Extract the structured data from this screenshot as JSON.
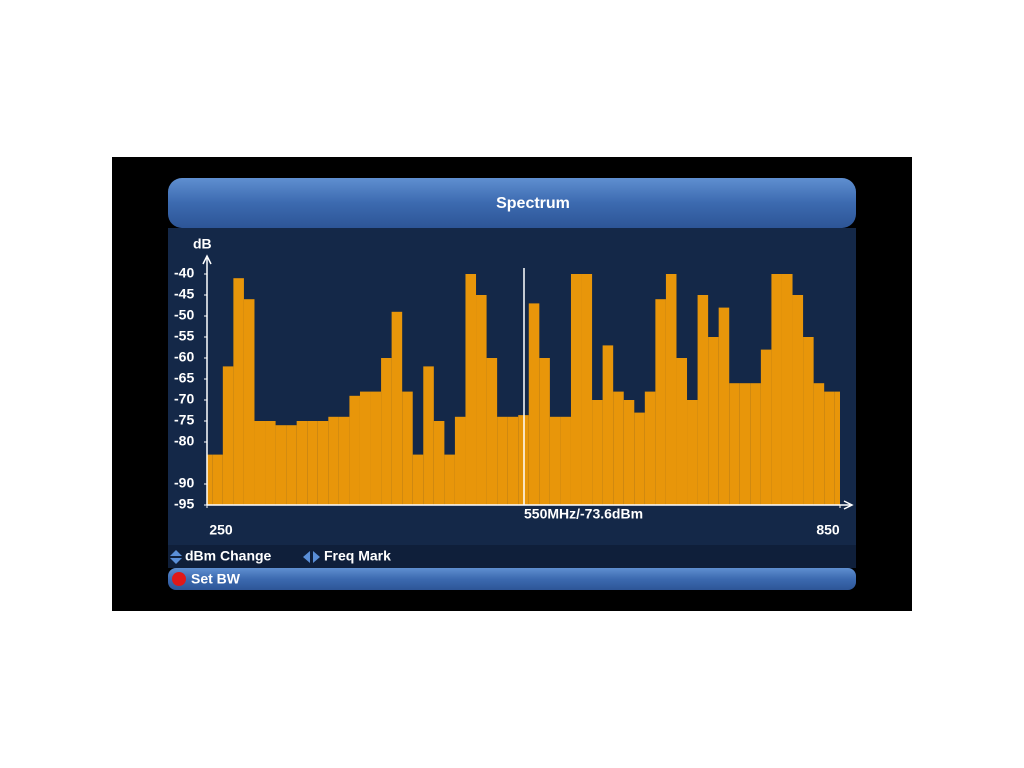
{
  "header": {
    "title": "Spectrum"
  },
  "chart_data": {
    "type": "bar",
    "y_label": "dB",
    "annotation": "550MHz/-73.6dBm",
    "x": [
      250,
      260,
      270,
      280,
      290,
      300,
      310,
      320,
      330,
      340,
      350,
      360,
      370,
      380,
      390,
      400,
      410,
      420,
      430,
      440,
      450,
      460,
      470,
      480,
      490,
      500,
      510,
      520,
      530,
      540,
      550,
      560,
      570,
      580,
      590,
      600,
      610,
      620,
      630,
      640,
      650,
      660,
      670,
      680,
      690,
      700,
      710,
      720,
      730,
      740,
      750,
      760,
      770,
      780,
      790,
      800,
      810,
      820,
      830,
      840,
      850
    ],
    "values": [
      -83,
      -83,
      -62,
      -41,
      -46,
      -75,
      -75,
      -76,
      -76,
      -75,
      -75,
      -75,
      -74,
      -74,
      -69,
      -68,
      -68,
      -60,
      -49,
      -68,
      -83,
      -62,
      -75,
      -83,
      -74,
      -40,
      -45,
      -60,
      -74,
      -74,
      -73.6,
      -47,
      -60,
      -74,
      -74,
      -40,
      -40,
      -70,
      -57,
      -68,
      -70,
      -73,
      -68,
      -46,
      -40,
      -60,
      -70,
      -45,
      -55,
      -48,
      -66,
      -66,
      -66,
      -58,
      -40,
      -40,
      -45,
      -55,
      -66,
      -68,
      -68
    ],
    "color": "#e8960a",
    "xlim": [
      250,
      850
    ],
    "xticks": [
      250,
      850
    ],
    "ylim": [
      -95,
      -40
    ],
    "yticks": [
      -40,
      -45,
      -50,
      -55,
      -60,
      -65,
      -70,
      -75,
      -80,
      -90,
      -95
    ]
  },
  "hints": [
    "dBm Change",
    "Freq Mark"
  ],
  "footer": {
    "button": "Set BW"
  }
}
